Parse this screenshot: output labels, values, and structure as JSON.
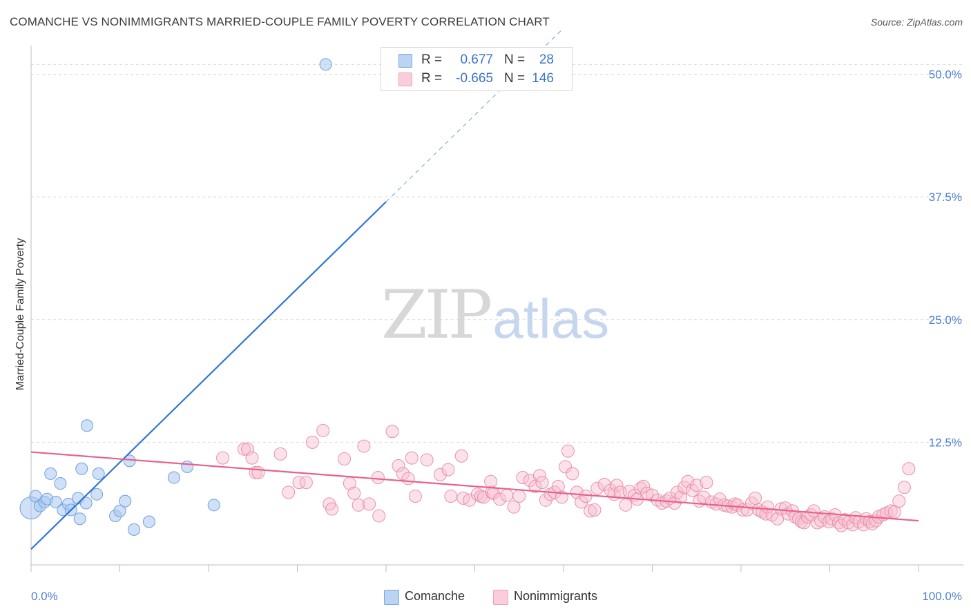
{
  "header": {
    "title": "COMANCHE VS NONIMMIGRANTS MARRIED-COUPLE FAMILY POVERTY CORRELATION CHART",
    "source": "Source: ZipAtlas.com"
  },
  "watermark": {
    "zip": "ZIP",
    "atlas": "atlas"
  },
  "legend": {
    "rows": [
      {
        "r_label": "R =",
        "r_value": "0.677",
        "n_label": "N =",
        "n_value": "28"
      },
      {
        "r_label": "R =",
        "r_value": "-0.665",
        "n_label": "N =",
        "n_value": "146"
      }
    ],
    "bottom": [
      "Comanche",
      "Nonimmigrants"
    ]
  },
  "colors": {
    "comanche_fill": "#a9c8f0",
    "comanche_stroke": "#6d9fdc",
    "comanche_line": "#2f74d6",
    "nonimm_fill": "#f7bfd0",
    "nonimm_stroke": "#ea8fab",
    "nonimm_line": "#e8608c",
    "grid": "#d9d9d9",
    "tick_text": "#4a7fd0"
  },
  "chart_data": {
    "type": "scatter",
    "title": "COMANCHE VS NONIMMIGRANTS MARRIED-COUPLE FAMILY POVERTY CORRELATION CHART",
    "xlabel": "",
    "ylabel": "Married-Couple Family Poverty",
    "xlim": [
      0,
      100
    ],
    "ylim": [
      0,
      52.5
    ],
    "x_tick_labels": [
      "0.0%",
      "100.0%"
    ],
    "y_ticks": [
      12.5,
      25.0,
      37.5,
      50.0
    ],
    "y_tick_labels": [
      "12.5%",
      "25.0%",
      "37.5%",
      "50.0%"
    ],
    "grid": true,
    "legend_position": "top-center",
    "series": [
      {
        "name": "Comanche",
        "points": [
          [
            0.0,
            5.8
          ],
          [
            0.5,
            7.0
          ],
          [
            1.0,
            6.0
          ],
          [
            1.5,
            6.4
          ],
          [
            1.8,
            6.7
          ],
          [
            2.2,
            9.3
          ],
          [
            2.8,
            6.4
          ],
          [
            3.3,
            8.3
          ],
          [
            3.6,
            5.6
          ],
          [
            4.2,
            6.2
          ],
          [
            4.5,
            5.6
          ],
          [
            5.3,
            6.8
          ],
          [
            5.5,
            4.7
          ],
          [
            5.7,
            9.8
          ],
          [
            6.2,
            6.3
          ],
          [
            6.3,
            14.2
          ],
          [
            7.4,
            7.2
          ],
          [
            7.6,
            9.3
          ],
          [
            9.5,
            5.0
          ],
          [
            10.0,
            5.5
          ],
          [
            10.6,
            6.5
          ],
          [
            11.1,
            10.6
          ],
          [
            11.6,
            3.6
          ],
          [
            13.3,
            4.4
          ],
          [
            16.1,
            8.9
          ],
          [
            17.6,
            10.0
          ],
          [
            20.6,
            6.1
          ],
          [
            33.2,
            51.0
          ]
        ],
        "trendline": {
          "x": [
            0,
            40
          ],
          "y": [
            1.6,
            37.0
          ],
          "dashed_to": [
            60,
            54.7
          ]
        }
      },
      {
        "name": "Nonimmigrants",
        "points": [
          [
            21.6,
            10.9
          ],
          [
            24.0,
            11.8
          ],
          [
            24.4,
            11.8
          ],
          [
            24.9,
            10.9
          ],
          [
            25.3,
            9.4
          ],
          [
            25.6,
            9.4
          ],
          [
            28.1,
            11.3
          ],
          [
            29.0,
            7.4
          ],
          [
            30.2,
            8.4
          ],
          [
            31.0,
            8.4
          ],
          [
            31.7,
            12.5
          ],
          [
            32.9,
            13.7
          ],
          [
            33.6,
            6.2
          ],
          [
            33.9,
            5.7
          ],
          [
            35.3,
            10.8
          ],
          [
            35.9,
            8.3
          ],
          [
            36.4,
            7.3
          ],
          [
            36.9,
            6.1
          ],
          [
            37.5,
            12.1
          ],
          [
            38.1,
            6.2
          ],
          [
            39.1,
            8.9
          ],
          [
            39.2,
            5.0
          ],
          [
            40.7,
            13.6
          ],
          [
            41.4,
            10.1
          ],
          [
            41.9,
            9.3
          ],
          [
            42.5,
            8.8
          ],
          [
            42.9,
            10.9
          ],
          [
            43.3,
            7.0
          ],
          [
            44.6,
            10.7
          ],
          [
            46.1,
            9.2
          ],
          [
            47.0,
            9.7
          ],
          [
            47.3,
            7.0
          ],
          [
            48.5,
            11.1
          ],
          [
            48.7,
            6.8
          ],
          [
            49.4,
            6.6
          ],
          [
            50.3,
            7.2
          ],
          [
            50.7,
            7.0
          ],
          [
            51.0,
            6.9
          ],
          [
            51.8,
            8.5
          ],
          [
            51.9,
            7.4
          ],
          [
            52.1,
            7.3
          ],
          [
            52.8,
            6.7
          ],
          [
            53.6,
            7.1
          ],
          [
            54.4,
            5.9
          ],
          [
            55.0,
            7.0
          ],
          [
            55.4,
            8.9
          ],
          [
            56.2,
            8.6
          ],
          [
            56.8,
            8.0
          ],
          [
            57.3,
            9.1
          ],
          [
            57.6,
            8.4
          ],
          [
            58.0,
            6.6
          ],
          [
            58.5,
            7.2
          ],
          [
            59.0,
            7.4
          ],
          [
            59.4,
            8.0
          ],
          [
            59.8,
            6.9
          ],
          [
            60.2,
            10.0
          ],
          [
            60.5,
            11.6
          ],
          [
            61.0,
            9.3
          ],
          [
            61.5,
            7.4
          ],
          [
            62.0,
            6.4
          ],
          [
            62.5,
            7.0
          ],
          [
            63.0,
            5.5
          ],
          [
            63.5,
            5.6
          ],
          [
            63.8,
            7.8
          ],
          [
            64.6,
            8.2
          ],
          [
            65.3,
            7.6
          ],
          [
            65.7,
            7.2
          ],
          [
            66.0,
            8.1
          ],
          [
            66.4,
            7.4
          ],
          [
            67.0,
            6.1
          ],
          [
            67.4,
            7.5
          ],
          [
            68.0,
            7.1
          ],
          [
            68.3,
            6.7
          ],
          [
            68.7,
            7.8
          ],
          [
            69.0,
            8.0
          ],
          [
            69.4,
            7.3
          ],
          [
            70.0,
            7.1
          ],
          [
            70.6,
            6.6
          ],
          [
            71.1,
            6.3
          ],
          [
            71.6,
            6.5
          ],
          [
            72.0,
            6.8
          ],
          [
            72.5,
            6.3
          ],
          [
            72.8,
            7.4
          ],
          [
            73.2,
            6.9
          ],
          [
            73.6,
            7.9
          ],
          [
            74.0,
            8.5
          ],
          [
            74.5,
            7.6
          ],
          [
            75.0,
            8.1
          ],
          [
            75.3,
            6.5
          ],
          [
            75.8,
            6.9
          ],
          [
            76.1,
            8.4
          ],
          [
            76.7,
            6.4
          ],
          [
            77.2,
            6.2
          ],
          [
            77.6,
            6.7
          ],
          [
            78.1,
            6.1
          ],
          [
            78.5,
            6.0
          ],
          [
            79.0,
            5.9
          ],
          [
            79.3,
            6.2
          ],
          [
            79.6,
            6.1
          ],
          [
            80.2,
            5.6
          ],
          [
            80.7,
            5.6
          ],
          [
            81.2,
            6.3
          ],
          [
            81.6,
            6.8
          ],
          [
            82.0,
            5.6
          ],
          [
            82.4,
            5.4
          ],
          [
            82.8,
            5.2
          ],
          [
            83.0,
            5.9
          ],
          [
            83.5,
            5.1
          ],
          [
            84.1,
            4.7
          ],
          [
            84.5,
            5.7
          ],
          [
            85.0,
            5.8
          ],
          [
            85.3,
            5.2
          ],
          [
            85.8,
            5.5
          ],
          [
            86.1,
            4.9
          ],
          [
            86.5,
            4.7
          ],
          [
            86.8,
            4.4
          ],
          [
            87.1,
            4.3
          ],
          [
            87.5,
            4.9
          ],
          [
            87.9,
            5.1
          ],
          [
            88.2,
            5.5
          ],
          [
            88.6,
            4.3
          ],
          [
            89.0,
            4.5
          ],
          [
            89.4,
            4.9
          ],
          [
            89.9,
            4.4
          ],
          [
            90.2,
            4.7
          ],
          [
            90.6,
            5.1
          ],
          [
            91.0,
            4.3
          ],
          [
            91.3,
            4.0
          ],
          [
            91.7,
            4.6
          ],
          [
            92.1,
            4.3
          ],
          [
            92.6,
            4.1
          ],
          [
            92.9,
            4.8
          ],
          [
            93.3,
            4.4
          ],
          [
            93.8,
            4.1
          ],
          [
            94.1,
            4.7
          ],
          [
            94.5,
            4.4
          ],
          [
            94.8,
            4.2
          ],
          [
            95.2,
            4.5
          ],
          [
            95.5,
            4.9
          ],
          [
            96.0,
            5.1
          ],
          [
            96.4,
            5.3
          ],
          [
            96.9,
            5.5
          ],
          [
            97.3,
            5.4
          ],
          [
            97.8,
            6.5
          ],
          [
            98.4,
            7.9
          ],
          [
            98.9,
            9.8
          ]
        ],
        "trendline": {
          "x": [
            0,
            100
          ],
          "y": [
            11.5,
            4.5
          ]
        }
      }
    ]
  }
}
